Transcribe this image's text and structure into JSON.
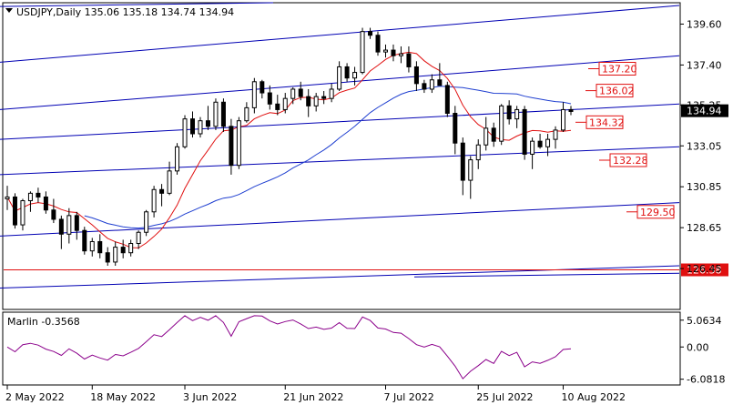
{
  "chart_data": [
    {
      "type": "candlestick",
      "title": "USDJPY,Daily  135.06 135.18 134.74 134.94",
      "current_price": "134.94",
      "y_ticks": [
        "139.60",
        "137.40",
        "135.25",
        "133.05",
        "130.85",
        "128.65",
        "126.45"
      ],
      "ylim": [
        124.3,
        140.7
      ],
      "x_ticks": [
        "2 May 2022",
        "18 May 2022",
        "3 Jun 2022",
        "21 Jun 2022",
        "7 Jul 2022",
        "25 Jul 2022",
        "10 Aug 2022"
      ],
      "levels": [
        {
          "label": "137.20",
          "value": 137.2
        },
        {
          "label": "136.02",
          "value": 136.02
        },
        {
          "label": "134.32",
          "value": 134.32
        },
        {
          "label": "132.28",
          "value": 132.28
        },
        {
          "label": "129.50",
          "value": 129.5
        },
        {
          "label": "126.38",
          "value": 126.38
        }
      ],
      "candles": [
        [
          130.2,
          130.9,
          129.6,
          130.3
        ],
        [
          130.3,
          130.5,
          128.6,
          128.8
        ],
        [
          128.8,
          130.2,
          128.5,
          130.1
        ],
        [
          130.1,
          130.6,
          129.5,
          130.5
        ],
        [
          130.5,
          130.8,
          130.0,
          130.3
        ],
        [
          130.3,
          130.6,
          129.4,
          129.6
        ],
        [
          129.6,
          130.2,
          128.9,
          129.1
        ],
        [
          129.1,
          129.3,
          127.5,
          128.3
        ],
        [
          128.3,
          129.7,
          127.8,
          129.3
        ],
        [
          129.3,
          129.5,
          128.0,
          128.5
        ],
        [
          128.5,
          128.7,
          127.2,
          127.4
        ],
        [
          127.4,
          128.1,
          127.1,
          127.9
        ],
        [
          127.9,
          128.3,
          127.0,
          127.3
        ],
        [
          127.3,
          127.6,
          126.6,
          126.8
        ],
        [
          126.8,
          127.9,
          126.6,
          127.6
        ],
        [
          127.6,
          128.0,
          127.0,
          127.3
        ],
        [
          127.3,
          128.0,
          127.1,
          127.8
        ],
        [
          127.8,
          128.5,
          127.5,
          128.4
        ],
        [
          128.4,
          129.6,
          128.2,
          129.5
        ],
        [
          129.5,
          130.9,
          129.2,
          130.7
        ],
        [
          130.7,
          131.0,
          129.8,
          130.5
        ],
        [
          130.5,
          132.2,
          130.4,
          131.7
        ],
        [
          131.7,
          133.2,
          131.5,
          133.0
        ],
        [
          133.0,
          134.7,
          132.9,
          134.5
        ],
        [
          134.5,
          134.9,
          133.5,
          133.7
        ],
        [
          133.7,
          134.6,
          133.5,
          134.4
        ],
        [
          134.4,
          135.2,
          133.9,
          134.1
        ],
        [
          134.1,
          135.6,
          133.9,
          135.4
        ],
        [
          135.4,
          135.6,
          133.8,
          134.1
        ],
        [
          134.1,
          134.5,
          131.5,
          132.0
        ],
        [
          132.0,
          134.6,
          131.8,
          134.4
        ],
        [
          134.4,
          135.4,
          134.3,
          135.1
        ],
        [
          135.1,
          136.7,
          134.8,
          136.5
        ],
        [
          136.5,
          136.6,
          135.6,
          135.9
        ],
        [
          135.9,
          136.3,
          135.0,
          135.3
        ],
        [
          135.3,
          135.8,
          134.7,
          135.0
        ],
        [
          135.0,
          135.9,
          134.8,
          135.6
        ],
        [
          135.6,
          136.2,
          135.3,
          136.1
        ],
        [
          136.1,
          136.5,
          135.5,
          135.7
        ],
        [
          135.7,
          136.1,
          134.6,
          135.2
        ],
        [
          135.2,
          135.9,
          134.9,
          135.7
        ],
        [
          135.7,
          136.0,
          135.3,
          135.6
        ],
        [
          135.6,
          136.4,
          135.4,
          136.1
        ],
        [
          136.1,
          137.6,
          136.0,
          137.3
        ],
        [
          137.3,
          137.5,
          136.5,
          136.7
        ],
        [
          136.7,
          137.3,
          136.3,
          137.0
        ],
        [
          137.0,
          139.4,
          136.9,
          139.2
        ],
        [
          139.2,
          139.4,
          138.8,
          139.0
        ],
        [
          139.0,
          139.2,
          137.9,
          138.1
        ],
        [
          138.1,
          138.5,
          137.8,
          138.2
        ],
        [
          138.2,
          138.5,
          137.6,
          137.9
        ],
        [
          137.9,
          138.4,
          137.5,
          138.0
        ],
        [
          138.0,
          138.4,
          137.0,
          137.3
        ],
        [
          137.3,
          137.6,
          136.0,
          136.4
        ],
        [
          136.4,
          136.6,
          135.9,
          136.1
        ],
        [
          136.1,
          136.9,
          135.9,
          136.6
        ],
        [
          136.6,
          137.5,
          136.3,
          136.3
        ],
        [
          136.3,
          136.5,
          134.6,
          134.8
        ],
        [
          134.8,
          135.2,
          132.6,
          133.2
        ],
        [
          133.2,
          133.5,
          130.4,
          131.2
        ],
        [
          131.2,
          132.5,
          130.2,
          132.3
        ],
        [
          132.3,
          133.4,
          131.8,
          133.1
        ],
        [
          133.1,
          134.6,
          132.8,
          134.0
        ],
        [
          134.0,
          134.3,
          133.0,
          133.3
        ],
        [
          133.3,
          135.3,
          133.1,
          135.2
        ],
        [
          135.2,
          135.5,
          134.2,
          134.5
        ],
        [
          134.5,
          135.2,
          134.0,
          135.0
        ],
        [
          135.0,
          135.2,
          132.3,
          132.6
        ],
        [
          132.6,
          133.5,
          131.8,
          133.3
        ],
        [
          133.3,
          133.7,
          132.9,
          133.0
        ],
        [
          133.0,
          133.7,
          132.5,
          133.4
        ],
        [
          133.4,
          134.1,
          132.9,
          133.9
        ],
        [
          133.9,
          135.4,
          133.8,
          135.0
        ],
        [
          135.0,
          135.2,
          134.7,
          134.9
        ]
      ],
      "indicator": {
        "label": "Marlin -0.3568",
        "value": -0.3568,
        "y_ticks": [
          "5.0634",
          "0.00",
          "-6.0818"
        ],
        "ylim": [
          -7.0,
          6.4
        ]
      }
    }
  ]
}
